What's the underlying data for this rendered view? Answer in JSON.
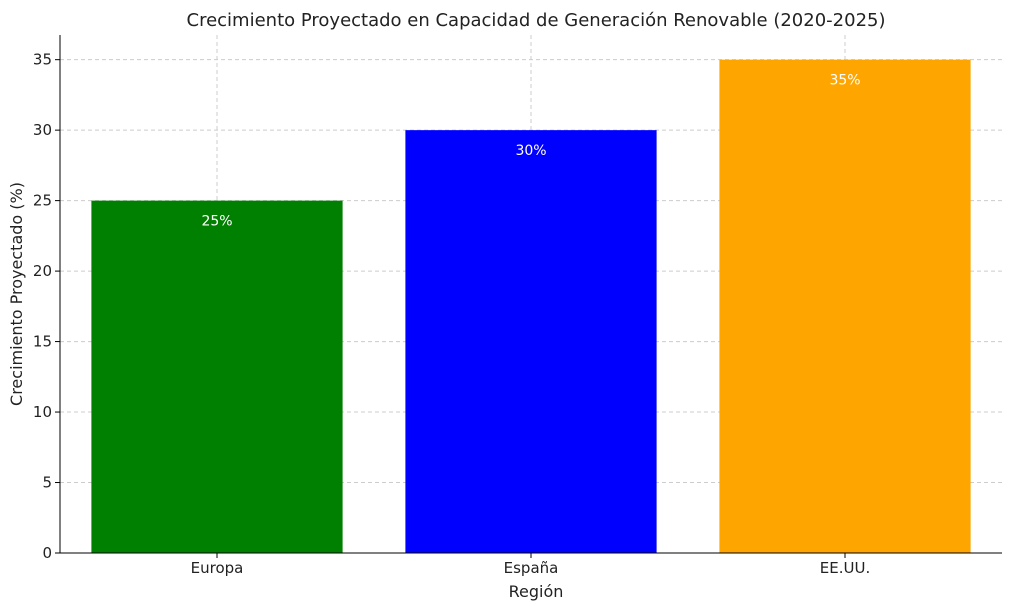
{
  "chart_data": {
    "type": "bar",
    "title": "Crecimiento Proyectado en Capacidad de Generación Renovable (2020-2025)",
    "xlabel": "Región",
    "ylabel": "Crecimiento Proyectado (%)",
    "categories": [
      "Europa",
      "España",
      "EE.UU."
    ],
    "values": [
      25,
      30,
      35
    ],
    "data_labels": [
      "25%",
      "30%",
      "35%"
    ],
    "colors": [
      "#008000",
      "#0000ff",
      "#ffa500"
    ],
    "ylim": [
      0,
      36.75
    ],
    "yticks": [
      0,
      5,
      10,
      15,
      20,
      25,
      30,
      35
    ],
    "grid": true
  }
}
